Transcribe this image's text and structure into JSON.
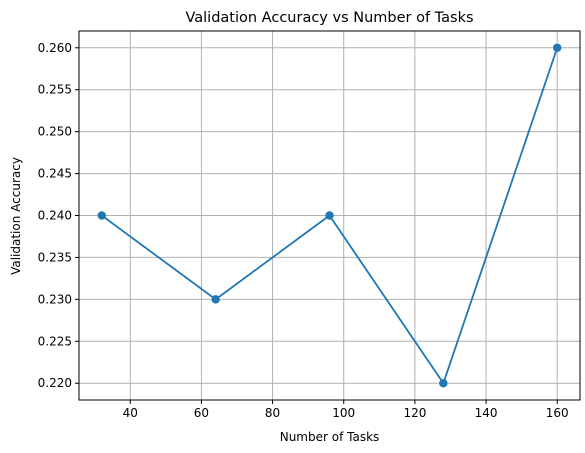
{
  "chart_data": {
    "type": "line",
    "title": "Validation Accuracy vs Number of Tasks",
    "xlabel": "Number of Tasks",
    "ylabel": "Validation Accuracy",
    "x": [
      32,
      64,
      96,
      128,
      160
    ],
    "series": [
      {
        "values": [
          0.24,
          0.23,
          0.24,
          0.22,
          0.26
        ],
        "color": "#1f77b4",
        "marker": "circle"
      }
    ],
    "xlim": [
      25.6,
      166.4
    ],
    "ylim": [
      0.218,
      0.262
    ],
    "xticks": [
      {
        "value": 40,
        "label": "40"
      },
      {
        "value": 60,
        "label": "60"
      },
      {
        "value": 80,
        "label": "80"
      },
      {
        "value": 100,
        "label": "100"
      },
      {
        "value": 120,
        "label": "120"
      },
      {
        "value": 140,
        "label": "140"
      },
      {
        "value": 160,
        "label": "160"
      }
    ],
    "yticks": [
      {
        "value": 0.22,
        "label": "0.220"
      },
      {
        "value": 0.225,
        "label": "0.225"
      },
      {
        "value": 0.23,
        "label": "0.230"
      },
      {
        "value": 0.235,
        "label": "0.235"
      },
      {
        "value": 0.24,
        "label": "0.240"
      },
      {
        "value": 0.245,
        "label": "0.245"
      },
      {
        "value": 0.25,
        "label": "0.250"
      },
      {
        "value": 0.255,
        "label": "0.255"
      },
      {
        "value": 0.26,
        "label": "0.260"
      }
    ],
    "grid": true,
    "grid_color": "#b0b0b0",
    "axis_color": "#000000",
    "legend": "none"
  }
}
